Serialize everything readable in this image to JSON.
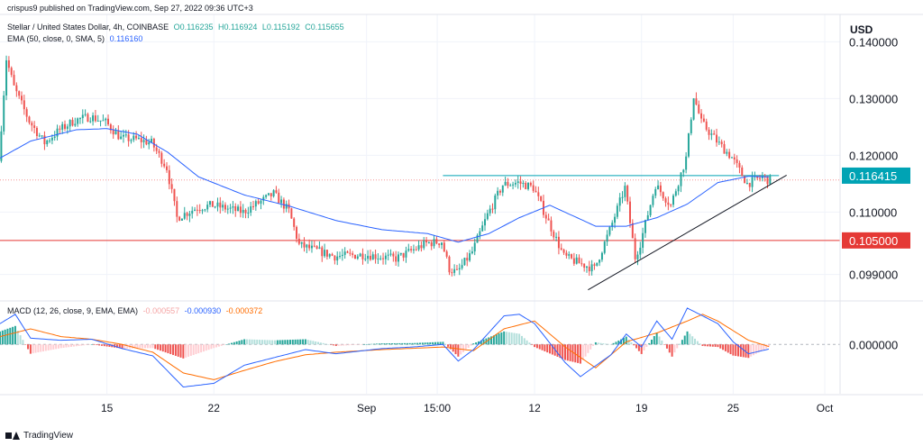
{
  "publisher_line": "crispus9 published on TradingView.com, Sep 27, 2022 09:36 UTC+3",
  "legend": {
    "symbol": "Stellar / United States Dollar, 4h, COINBASE",
    "open": "O0.116235",
    "high": "H0.116924",
    "low": "L0.115192",
    "close": "C0.115655",
    "ema_label": "EMA (50, close, 0, SMA, 5)",
    "ema_value": "0.116160",
    "macd_label": "MACD (12, 26, close, 9, EMA, EMA)",
    "macd_hist": "-0.000557",
    "macd_line": "-0.000930",
    "macd_signal": "-0.000372"
  },
  "currency": "USD",
  "footer": "TradingView",
  "colors": {
    "up": "#26a69a",
    "down": "#ef5350",
    "ema": "#2962ff",
    "macd": "#2962ff",
    "signal": "#ff6d00",
    "resistance": "#00a3b4",
    "support": "#e53935",
    "trendline": "#131722"
  },
  "chart_data": {
    "type": "candlestick",
    "interval": "4h",
    "price_axis": {
      "ticks": [
        0.14,
        0.13,
        0.12,
        0.11,
        0.099
      ],
      "tick_labels": [
        "0.140000",
        "0.130000",
        "0.120000",
        "0.110000",
        "0.099000"
      ],
      "ylim": [
        0.0945,
        0.1445
      ]
    },
    "time_axis": {
      "ticks": [
        {
          "label": "15",
          "date": "2022-08-15"
        },
        {
          "label": "22",
          "date": "2022-08-22"
        },
        {
          "label": "Sep",
          "date": "2022-09-01"
        },
        {
          "label": "15:00",
          "date": "2022-09-05T15:00"
        },
        {
          "label": "12",
          "date": "2022-09-12"
        },
        {
          "label": "19",
          "date": "2022-09-19"
        },
        {
          "label": "25",
          "date": "2022-09-25"
        },
        {
          "label": "Oct",
          "date": "2022-10-01"
        }
      ],
      "start": "2022-08-08",
      "end": "2022-10-02"
    },
    "price_labels": [
      {
        "value": 0.116415,
        "label": "0.116415",
        "color": "#00a3b4"
      },
      {
        "value": 0.105,
        "label": "0.105000",
        "color": "#e53935"
      }
    ],
    "horizontal_lines": [
      {
        "value": 0.116415,
        "color": "#00a3b4",
        "from": "2022-09-06",
        "to": "2022-09-28"
      },
      {
        "value": 0.105,
        "color": "#e53935",
        "from": "2022-08-08",
        "to": "2022-10-02"
      }
    ],
    "trendline": {
      "points": [
        [
          "2022-09-15T12:00",
          0.0963
        ],
        [
          "2022-09-28T12:00",
          0.1165
        ]
      ],
      "color": "#131722"
    },
    "ema_waypoints": [
      [
        "2022-08-08",
        0.1195
      ],
      [
        "2022-08-10",
        0.1225
      ],
      [
        "2022-08-13",
        0.1245
      ],
      [
        "2022-08-15",
        0.1247
      ],
      [
        "2022-08-17",
        0.1237
      ],
      [
        "2022-08-19",
        0.1205
      ],
      [
        "2022-08-21",
        0.1162
      ],
      [
        "2022-08-24",
        0.113
      ],
      [
        "2022-08-27",
        0.111
      ],
      [
        "2022-08-30",
        0.1085
      ],
      [
        "2022-09-02",
        0.1069
      ],
      [
        "2022-09-05",
        0.1062
      ],
      [
        "2022-09-07",
        0.1047
      ],
      [
        "2022-09-09",
        0.1062
      ],
      [
        "2022-09-11",
        0.109
      ],
      [
        "2022-09-13",
        0.1112
      ],
      [
        "2022-09-16",
        0.1075
      ],
      [
        "2022-09-18",
        0.1075
      ],
      [
        "2022-09-20",
        0.109
      ],
      [
        "2022-09-22",
        0.1114
      ],
      [
        "2022-09-24",
        0.1152
      ],
      [
        "2022-09-26",
        0.1163
      ],
      [
        "2022-09-27T08:00",
        0.1162
      ]
    ],
    "candle_waypoints": [
      [
        "2022-08-08",
        0.119
      ],
      [
        "2022-08-08T12:00",
        0.137
      ],
      [
        "2022-08-09",
        0.132
      ],
      [
        "2022-08-10",
        0.126
      ],
      [
        "2022-08-11",
        0.1222
      ],
      [
        "2022-08-12",
        0.1245
      ],
      [
        "2022-08-13",
        0.1262
      ],
      [
        "2022-08-14",
        0.1268
      ],
      [
        "2022-08-15",
        0.1258
      ],
      [
        "2022-08-16",
        0.123
      ],
      [
        "2022-08-17",
        0.1228
      ],
      [
        "2022-08-18",
        0.1222
      ],
      [
        "2022-08-19",
        0.1178
      ],
      [
        "2022-08-19T16:00",
        0.109
      ],
      [
        "2022-08-21",
        0.1108
      ],
      [
        "2022-08-22",
        0.1112
      ],
      [
        "2022-08-24",
        0.11
      ],
      [
        "2022-08-26",
        0.1132
      ],
      [
        "2022-08-27",
        0.1102
      ],
      [
        "2022-08-27T16:00",
        0.1042
      ],
      [
        "2022-08-30",
        0.1022
      ],
      [
        "2022-09-01",
        0.1025
      ],
      [
        "2022-09-03",
        0.1018
      ],
      [
        "2022-09-05",
        0.1045
      ],
      [
        "2022-09-06",
        0.1048
      ],
      [
        "2022-09-06T12:00",
        0.1
      ],
      [
        "2022-09-07",
        0.0993
      ],
      [
        "2022-09-08",
        0.103
      ],
      [
        "2022-09-09",
        0.1095
      ],
      [
        "2022-09-10",
        0.1148
      ],
      [
        "2022-09-11",
        0.1152
      ],
      [
        "2022-09-12",
        0.1143
      ],
      [
        "2022-09-13",
        0.1082
      ],
      [
        "2022-09-14",
        0.1022
      ],
      [
        "2022-09-15",
        0.101
      ],
      [
        "2022-09-16",
        0.1
      ],
      [
        "2022-09-17",
        0.1068
      ],
      [
        "2022-09-18",
        0.1143
      ],
      [
        "2022-09-18T16:00",
        0.102
      ],
      [
        "2022-09-19",
        0.1045
      ],
      [
        "2022-09-20",
        0.1148
      ],
      [
        "2022-09-21",
        0.1112
      ],
      [
        "2022-09-22",
        0.1195
      ],
      [
        "2022-09-22T12:00",
        0.1305
      ],
      [
        "2022-09-23",
        0.1258
      ],
      [
        "2022-09-24",
        0.1225
      ],
      [
        "2022-09-25",
        0.1196
      ],
      [
        "2022-09-26",
        0.115
      ],
      [
        "2022-09-27",
        0.1162
      ],
      [
        "2022-09-27T08:00",
        0.1157
      ]
    ],
    "macd_panel": {
      "zero_line": 0,
      "tick_labels": [
        "0.000000"
      ],
      "ylim": [
        -0.0095,
        0.0082
      ],
      "macd_waypoints": [
        [
          "2022-08-08",
          0.004
        ],
        [
          "2022-08-09",
          0.0058
        ],
        [
          "2022-08-10",
          0.0012
        ],
        [
          "2022-08-12",
          0.0008
        ],
        [
          "2022-08-14",
          0.001
        ],
        [
          "2022-08-16",
          -0.0008
        ],
        [
          "2022-08-18",
          -0.0022
        ],
        [
          "2022-08-20",
          -0.0082
        ],
        [
          "2022-08-22",
          -0.0075
        ],
        [
          "2022-08-24",
          -0.004
        ],
        [
          "2022-08-26",
          -0.0025
        ],
        [
          "2022-08-28",
          -0.001
        ],
        [
          "2022-08-30",
          -0.0018
        ],
        [
          "2022-09-02",
          -0.0008
        ],
        [
          "2022-09-04",
          -0.0005
        ],
        [
          "2022-09-06",
          0.0
        ],
        [
          "2022-09-07",
          -0.0032
        ],
        [
          "2022-09-08",
          -0.001
        ],
        [
          "2022-09-10",
          0.0055
        ],
        [
          "2022-09-11",
          0.0058
        ],
        [
          "2022-09-12",
          0.004
        ],
        [
          "2022-09-14",
          -0.0035
        ],
        [
          "2022-09-15",
          -0.0062
        ],
        [
          "2022-09-17",
          -0.002
        ],
        [
          "2022-09-18",
          0.002
        ],
        [
          "2022-09-19",
          -0.0005
        ],
        [
          "2022-09-20",
          0.0045
        ],
        [
          "2022-09-21",
          0.001
        ],
        [
          "2022-09-22",
          0.007
        ],
        [
          "2022-09-23",
          0.0055
        ],
        [
          "2022-09-24",
          0.004
        ],
        [
          "2022-09-25",
          0.0005
        ],
        [
          "2022-09-26",
          -0.0018
        ],
        [
          "2022-09-27T08:00",
          -0.0009
        ]
      ],
      "signal_waypoints": [
        [
          "2022-08-08",
          0.0015
        ],
        [
          "2022-08-10",
          0.003
        ],
        [
          "2022-08-12",
          0.0015
        ],
        [
          "2022-08-14",
          0.001
        ],
        [
          "2022-08-16",
          0.0
        ],
        [
          "2022-08-18",
          -0.0015
        ],
        [
          "2022-08-20",
          -0.0055
        ],
        [
          "2022-08-22",
          -0.0068
        ],
        [
          "2022-08-24",
          -0.005
        ],
        [
          "2022-08-26",
          -0.0033
        ],
        [
          "2022-08-28",
          -0.002
        ],
        [
          "2022-08-30",
          -0.0015
        ],
        [
          "2022-09-02",
          -0.001
        ],
        [
          "2022-09-06",
          -0.0005
        ],
        [
          "2022-09-08",
          -0.0012
        ],
        [
          "2022-09-10",
          0.003
        ],
        [
          "2022-09-12",
          0.0045
        ],
        [
          "2022-09-14",
          -0.0005
        ],
        [
          "2022-09-16",
          -0.0045
        ],
        [
          "2022-09-18",
          0.0005
        ],
        [
          "2022-09-20",
          0.0022
        ],
        [
          "2022-09-22",
          0.0045
        ],
        [
          "2022-09-23",
          0.0058
        ],
        [
          "2022-09-24",
          0.0045
        ],
        [
          "2022-09-26",
          0.0008
        ],
        [
          "2022-09-27T08:00",
          -0.0004
        ]
      ]
    }
  }
}
